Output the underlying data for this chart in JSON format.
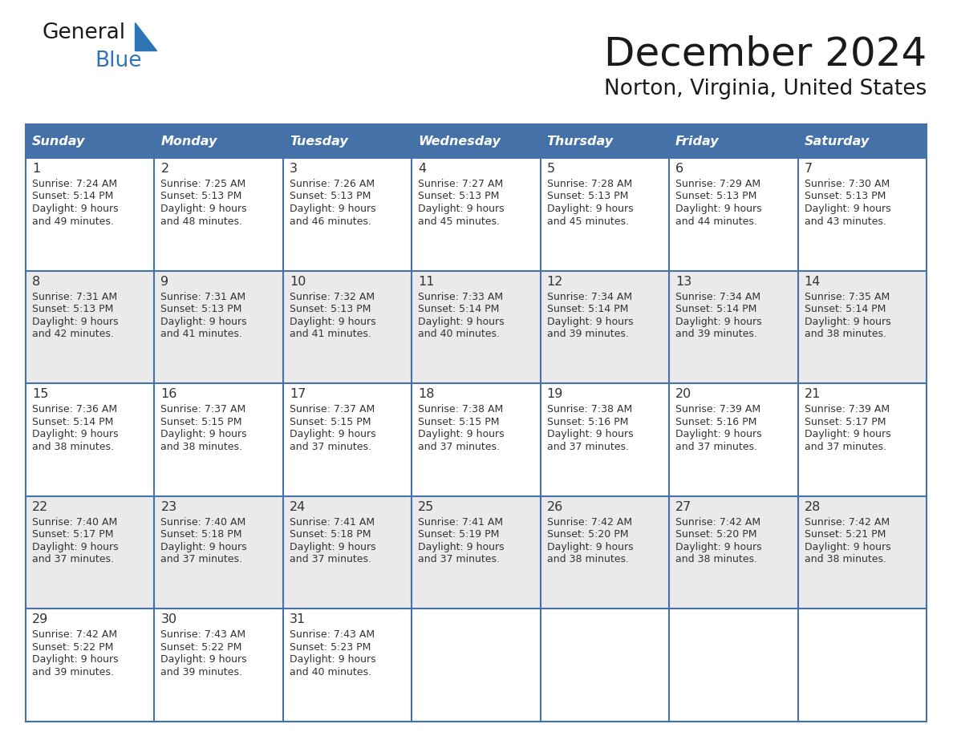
{
  "title": "December 2024",
  "subtitle": "Norton, Virginia, United States",
  "header_color": "#4472A8",
  "header_text_color": "#FFFFFF",
  "cell_bg_white": "#FFFFFF",
  "cell_bg_gray": "#EAEAEA",
  "day_headers": [
    "Sunday",
    "Monday",
    "Tuesday",
    "Wednesday",
    "Thursday",
    "Friday",
    "Saturday"
  ],
  "weeks": [
    [
      {
        "day": 1,
        "sunrise": "7:24 AM",
        "sunset": "5:14 PM",
        "daylight_hours": 9,
        "daylight_minutes": "49 minutes."
      },
      {
        "day": 2,
        "sunrise": "7:25 AM",
        "sunset": "5:13 PM",
        "daylight_hours": 9,
        "daylight_minutes": "48 minutes."
      },
      {
        "day": 3,
        "sunrise": "7:26 AM",
        "sunset": "5:13 PM",
        "daylight_hours": 9,
        "daylight_minutes": "46 minutes."
      },
      {
        "day": 4,
        "sunrise": "7:27 AM",
        "sunset": "5:13 PM",
        "daylight_hours": 9,
        "daylight_minutes": "45 minutes."
      },
      {
        "day": 5,
        "sunrise": "7:28 AM",
        "sunset": "5:13 PM",
        "daylight_hours": 9,
        "daylight_minutes": "45 minutes."
      },
      {
        "day": 6,
        "sunrise": "7:29 AM",
        "sunset": "5:13 PM",
        "daylight_hours": 9,
        "daylight_minutes": "44 minutes."
      },
      {
        "day": 7,
        "sunrise": "7:30 AM",
        "sunset": "5:13 PM",
        "daylight_hours": 9,
        "daylight_minutes": "43 minutes."
      }
    ],
    [
      {
        "day": 8,
        "sunrise": "7:31 AM",
        "sunset": "5:13 PM",
        "daylight_hours": 9,
        "daylight_minutes": "42 minutes."
      },
      {
        "day": 9,
        "sunrise": "7:31 AM",
        "sunset": "5:13 PM",
        "daylight_hours": 9,
        "daylight_minutes": "41 minutes."
      },
      {
        "day": 10,
        "sunrise": "7:32 AM",
        "sunset": "5:13 PM",
        "daylight_hours": 9,
        "daylight_minutes": "41 minutes."
      },
      {
        "day": 11,
        "sunrise": "7:33 AM",
        "sunset": "5:14 PM",
        "daylight_hours": 9,
        "daylight_minutes": "40 minutes."
      },
      {
        "day": 12,
        "sunrise": "7:34 AM",
        "sunset": "5:14 PM",
        "daylight_hours": 9,
        "daylight_minutes": "39 minutes."
      },
      {
        "day": 13,
        "sunrise": "7:34 AM",
        "sunset": "5:14 PM",
        "daylight_hours": 9,
        "daylight_minutes": "39 minutes."
      },
      {
        "day": 14,
        "sunrise": "7:35 AM",
        "sunset": "5:14 PM",
        "daylight_hours": 9,
        "daylight_minutes": "38 minutes."
      }
    ],
    [
      {
        "day": 15,
        "sunrise": "7:36 AM",
        "sunset": "5:14 PM",
        "daylight_hours": 9,
        "daylight_minutes": "38 minutes."
      },
      {
        "day": 16,
        "sunrise": "7:37 AM",
        "sunset": "5:15 PM",
        "daylight_hours": 9,
        "daylight_minutes": "38 minutes."
      },
      {
        "day": 17,
        "sunrise": "7:37 AM",
        "sunset": "5:15 PM",
        "daylight_hours": 9,
        "daylight_minutes": "37 minutes."
      },
      {
        "day": 18,
        "sunrise": "7:38 AM",
        "sunset": "5:15 PM",
        "daylight_hours": 9,
        "daylight_minutes": "37 minutes."
      },
      {
        "day": 19,
        "sunrise": "7:38 AM",
        "sunset": "5:16 PM",
        "daylight_hours": 9,
        "daylight_minutes": "37 minutes."
      },
      {
        "day": 20,
        "sunrise": "7:39 AM",
        "sunset": "5:16 PM",
        "daylight_hours": 9,
        "daylight_minutes": "37 minutes."
      },
      {
        "day": 21,
        "sunrise": "7:39 AM",
        "sunset": "5:17 PM",
        "daylight_hours": 9,
        "daylight_minutes": "37 minutes."
      }
    ],
    [
      {
        "day": 22,
        "sunrise": "7:40 AM",
        "sunset": "5:17 PM",
        "daylight_hours": 9,
        "daylight_minutes": "37 minutes."
      },
      {
        "day": 23,
        "sunrise": "7:40 AM",
        "sunset": "5:18 PM",
        "daylight_hours": 9,
        "daylight_minutes": "37 minutes."
      },
      {
        "day": 24,
        "sunrise": "7:41 AM",
        "sunset": "5:18 PM",
        "daylight_hours": 9,
        "daylight_minutes": "37 minutes."
      },
      {
        "day": 25,
        "sunrise": "7:41 AM",
        "sunset": "5:19 PM",
        "daylight_hours": 9,
        "daylight_minutes": "37 minutes."
      },
      {
        "day": 26,
        "sunrise": "7:42 AM",
        "sunset": "5:20 PM",
        "daylight_hours": 9,
        "daylight_minutes": "38 minutes."
      },
      {
        "day": 27,
        "sunrise": "7:42 AM",
        "sunset": "5:20 PM",
        "daylight_hours": 9,
        "daylight_minutes": "38 minutes."
      },
      {
        "day": 28,
        "sunrise": "7:42 AM",
        "sunset": "5:21 PM",
        "daylight_hours": 9,
        "daylight_minutes": "38 minutes."
      }
    ],
    [
      {
        "day": 29,
        "sunrise": "7:42 AM",
        "sunset": "5:22 PM",
        "daylight_hours": 9,
        "daylight_minutes": "39 minutes."
      },
      {
        "day": 30,
        "sunrise": "7:43 AM",
        "sunset": "5:22 PM",
        "daylight_hours": 9,
        "daylight_minutes": "39 minutes."
      },
      {
        "day": 31,
        "sunrise": "7:43 AM",
        "sunset": "5:23 PM",
        "daylight_hours": 9,
        "daylight_minutes": "40 minutes."
      },
      null,
      null,
      null,
      null
    ]
  ],
  "grid_line_color": "#4472A8",
  "text_color": "#333333",
  "day_num_color": "#333333",
  "logo_general_color": "#1a1a1a",
  "logo_blue_color": "#2E75B6",
  "triangle_color": "#2E75B6"
}
